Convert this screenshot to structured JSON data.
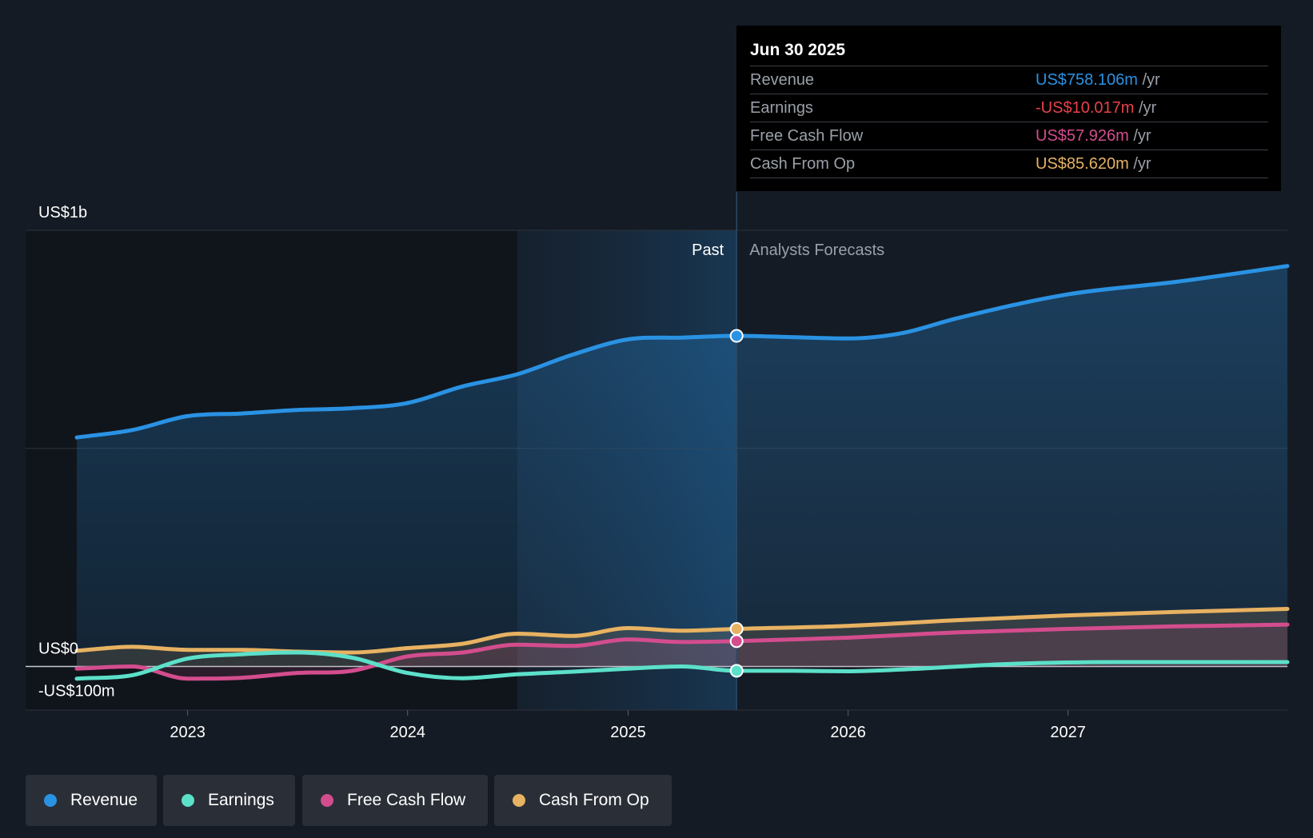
{
  "chart_data": {
    "type": "line",
    "x_domain": [
      "2022-07-01",
      "2027-12-31"
    ],
    "ylim": [
      -100,
      1000
    ],
    "y_unit": "US$m",
    "y_tick_labels": [
      {
        "value": 1000,
        "label": "US$1b"
      },
      {
        "value": 0,
        "label": "US$0"
      },
      {
        "value": -100,
        "label": "-US$100m"
      }
    ],
    "gridlines_y": [
      1000,
      500,
      0,
      -100
    ],
    "x_ticks": [
      {
        "date": "2023-01-01",
        "label": "2023"
      },
      {
        "date": "2024-01-01",
        "label": "2024"
      },
      {
        "date": "2025-01-01",
        "label": "2025"
      },
      {
        "date": "2026-01-01",
        "label": "2026"
      },
      {
        "date": "2027-01-01",
        "label": "2027"
      }
    ],
    "past_label": "Past",
    "forecast_label": "Analysts Forecasts",
    "past_shade_start": "2024-07-01",
    "divider_date": "2025-06-30",
    "legend_position": "bottom-left",
    "series": [
      {
        "name": "Revenue",
        "color": "#2a92e3",
        "fill": true,
        "points": [
          [
            "2022-07-01",
            525
          ],
          [
            "2022-10-01",
            542
          ],
          [
            "2023-01-01",
            574
          ],
          [
            "2023-04-01",
            580
          ],
          [
            "2023-07-01",
            588
          ],
          [
            "2023-10-01",
            592
          ],
          [
            "2024-01-01",
            604
          ],
          [
            "2024-04-01",
            642
          ],
          [
            "2024-07-01",
            670
          ],
          [
            "2024-10-01",
            715
          ],
          [
            "2025-01-01",
            750
          ],
          [
            "2025-03-31",
            754
          ],
          [
            "2025-06-30",
            758
          ],
          [
            "2025-09-30",
            755
          ],
          [
            "2025-12-31",
            752
          ],
          [
            "2026-03-31",
            764
          ],
          [
            "2026-06-30",
            798
          ],
          [
            "2026-12-31",
            853
          ],
          [
            "2027-06-30",
            882
          ],
          [
            "2027-12-31",
            918
          ]
        ]
      },
      {
        "name": "Earnings",
        "color": "#5ce0c9",
        "fill": false,
        "points": [
          [
            "2022-07-01",
            -28
          ],
          [
            "2022-10-01",
            -20
          ],
          [
            "2023-01-01",
            18
          ],
          [
            "2023-04-01",
            28
          ],
          [
            "2023-07-01",
            32
          ],
          [
            "2023-10-01",
            20
          ],
          [
            "2024-01-01",
            -15
          ],
          [
            "2024-04-01",
            -27
          ],
          [
            "2024-07-01",
            -18
          ],
          [
            "2024-10-01",
            -12
          ],
          [
            "2025-01-01",
            -5
          ],
          [
            "2025-03-31",
            0
          ],
          [
            "2025-06-30",
            -10
          ],
          [
            "2025-09-30",
            -10
          ],
          [
            "2025-12-31",
            -11
          ],
          [
            "2026-03-31",
            -7
          ],
          [
            "2026-09-30",
            6
          ],
          [
            "2027-03-31",
            10
          ],
          [
            "2027-12-31",
            10
          ]
        ]
      },
      {
        "name": "Free Cash Flow",
        "color": "#d34d8e",
        "fill": true,
        "points": [
          [
            "2022-07-01",
            -5
          ],
          [
            "2022-10-01",
            0
          ],
          [
            "2023-01-01",
            -28
          ],
          [
            "2023-04-01",
            -26
          ],
          [
            "2023-07-01",
            -15
          ],
          [
            "2023-10-01",
            -10
          ],
          [
            "2024-01-01",
            23
          ],
          [
            "2024-04-01",
            32
          ],
          [
            "2024-07-01",
            50
          ],
          [
            "2024-10-01",
            47
          ],
          [
            "2025-01-01",
            62
          ],
          [
            "2025-03-31",
            56
          ],
          [
            "2025-06-30",
            58
          ],
          [
            "2025-12-31",
            66
          ],
          [
            "2026-06-30",
            78
          ],
          [
            "2026-12-31",
            86
          ],
          [
            "2027-06-30",
            92
          ],
          [
            "2027-12-31",
            96
          ]
        ]
      },
      {
        "name": "Cash From Op",
        "color": "#e7b262",
        "fill": true,
        "points": [
          [
            "2022-07-01",
            36
          ],
          [
            "2022-10-01",
            45
          ],
          [
            "2023-01-01",
            38
          ],
          [
            "2023-04-01",
            38
          ],
          [
            "2023-07-01",
            34
          ],
          [
            "2023-10-01",
            32
          ],
          [
            "2024-01-01",
            42
          ],
          [
            "2024-04-01",
            52
          ],
          [
            "2024-07-01",
            75
          ],
          [
            "2024-10-01",
            70
          ],
          [
            "2025-01-01",
            88
          ],
          [
            "2025-03-31",
            82
          ],
          [
            "2025-06-30",
            86
          ],
          [
            "2025-12-31",
            93
          ],
          [
            "2026-06-30",
            106
          ],
          [
            "2026-12-31",
            117
          ],
          [
            "2027-06-30",
            125
          ],
          [
            "2027-12-31",
            132
          ]
        ]
      }
    ]
  },
  "tooltip": {
    "date": "Jun 30 2025",
    "rows": [
      {
        "label": "Revenue",
        "value": "US$758.106m",
        "unit": "/yr",
        "color": "#2a92e3"
      },
      {
        "label": "Earnings",
        "value": "-US$10.017m",
        "unit": "/yr",
        "color": "#e8414b"
      },
      {
        "label": "Free Cash Flow",
        "value": "US$57.926m",
        "unit": "/yr",
        "color": "#d34d8e"
      },
      {
        "label": "Cash From Op",
        "value": "US$85.620m",
        "unit": "/yr",
        "color": "#e7b262"
      }
    ]
  },
  "legend": [
    {
      "label": "Revenue",
      "color": "#2a92e3"
    },
    {
      "label": "Earnings",
      "color": "#5ce0c9"
    },
    {
      "label": "Free Cash Flow",
      "color": "#d34d8e"
    },
    {
      "label": "Cash From Op",
      "color": "#e7b262"
    }
  ]
}
